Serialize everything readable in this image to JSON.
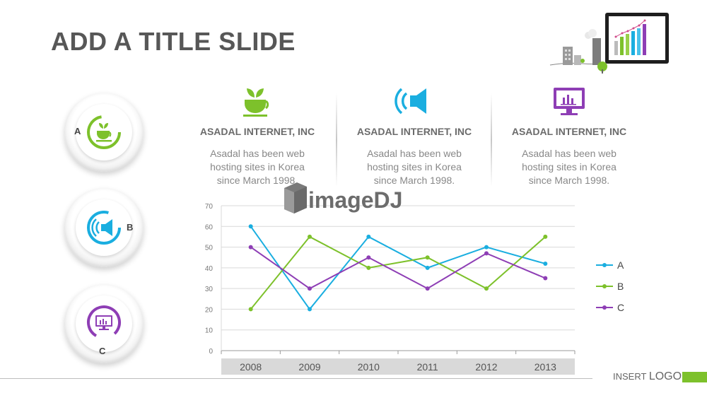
{
  "slide": {
    "title": "ADD A TITLE SLIDE",
    "watermark": "imageDJ",
    "logo_small": "INSERT",
    "logo_big": "LOGO"
  },
  "badges": [
    {
      "letter": "A",
      "icon": "tea-cup-icon",
      "color": "#7dc12b"
    },
    {
      "letter": "B",
      "icon": "speaker-icon",
      "color": "#1aaee0"
    },
    {
      "letter": "C",
      "icon": "monitor-chart-icon",
      "color": "#8e3eb5"
    }
  ],
  "columns": [
    {
      "icon": "tea-cup-icon",
      "color": "#7dc12b",
      "heading": "ASADAL INTERNET, INC",
      "text": "Asadal has been  web hosting sites in Korea since March 1998."
    },
    {
      "icon": "speaker-icon",
      "color": "#1aaee0",
      "heading": "ASADAL INTERNET, INC",
      "text": "Asadal has been  web hosting sites in Korea since March 1998."
    },
    {
      "icon": "monitor-chart-icon",
      "color": "#8e3eb5",
      "heading": "ASADAL INTERNET, INC",
      "text": "Asadal has been  web hosting sites in Korea since March 1998."
    }
  ],
  "chart_data": {
    "type": "line",
    "categories": [
      "2008",
      "2009",
      "2010",
      "2011",
      "2012",
      "2013"
    ],
    "series": [
      {
        "name": "A",
        "color": "#1aaee0",
        "values": [
          60,
          20,
          55,
          40,
          50,
          42
        ]
      },
      {
        "name": "B",
        "color": "#7dc12b",
        "values": [
          20,
          55,
          40,
          45,
          30,
          55
        ]
      },
      {
        "name": "C",
        "color": "#8e3eb5",
        "values": [
          50,
          30,
          45,
          30,
          47,
          35
        ]
      }
    ],
    "yticks": [
      "0",
      "10",
      "20",
      "30",
      "40",
      "50",
      "60",
      "70"
    ],
    "ylim": [
      0,
      70
    ],
    "grid": true,
    "legend": "right"
  }
}
